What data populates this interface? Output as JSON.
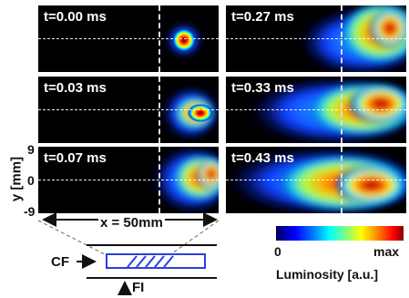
{
  "panels": [
    {
      "label": "t=0.00 ms"
    },
    {
      "label": "t=0.27 ms"
    },
    {
      "label": "t=0.03 ms"
    },
    {
      "label": "t=0.33 ms"
    },
    {
      "label": "t=0.07 ms"
    },
    {
      "label": "t=0.43 ms"
    }
  ],
  "y_axis": {
    "label": "y [mm]",
    "ticks": [
      "9",
      "0",
      "-9"
    ]
  },
  "x_span": "x = 50mm",
  "colorbar": {
    "min": "0",
    "max": "max",
    "label": "Luminosity [a.u.]"
  },
  "schematic": {
    "cf": "CF",
    "fi": "FI"
  }
}
